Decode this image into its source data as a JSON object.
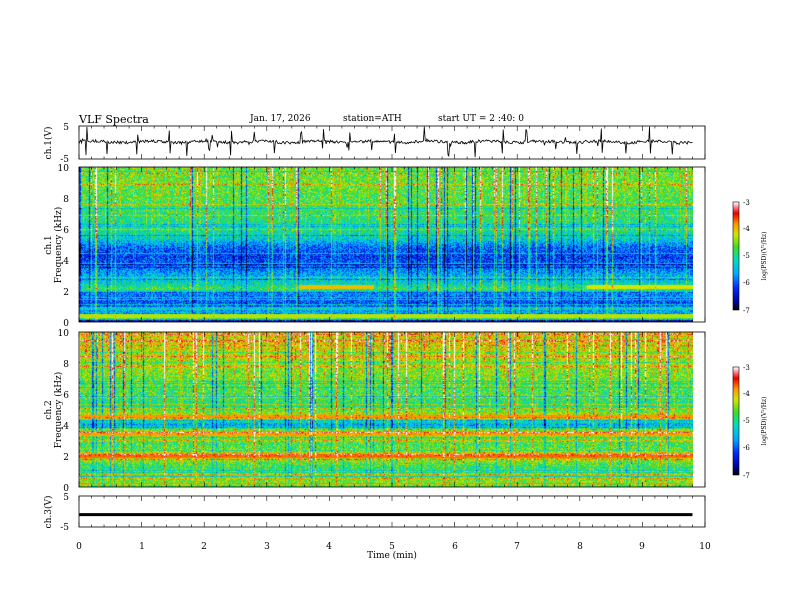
{
  "header": {
    "title": "VLF  Spectra",
    "date": "Jan. 17, 2026",
    "station": "station=ATH",
    "start": "start  UT  =   2 :40: 0"
  },
  "chart_data": [
    {
      "type": "line",
      "panel": "ch1-waveform",
      "ylabel": "ch.1(V)",
      "ylim": [
        -5,
        5
      ],
      "yticks": [
        "5",
        "-5"
      ],
      "xlim": [
        0,
        10
      ],
      "trace_end_min": 9.8,
      "baseline": 0.2,
      "spike_times_min": [
        0.12,
        0.45,
        0.93,
        1.45,
        1.72,
        2.08,
        2.43,
        2.8,
        3.12,
        3.55,
        3.9,
        4.32,
        4.68,
        5.05,
        5.52,
        5.9,
        6.33,
        6.77,
        7.15,
        7.62,
        7.95,
        8.35,
        8.74,
        9.12,
        9.48
      ]
    },
    {
      "type": "heatmap",
      "panel": "ch1-spectrogram",
      "ylabel": "ch.1\nFrequency (kHz)",
      "ylim": [
        0,
        10
      ],
      "yticks": [
        "0",
        "2",
        "4",
        "6",
        "8",
        "10"
      ],
      "xlim": [
        0,
        10
      ],
      "trace_end_min": 9.8,
      "colorbar": {
        "label": "log(PSD)(V²/Hz)",
        "ticks": [
          "-3",
          "-4",
          "-5",
          "-6",
          "-7"
        ],
        "range": [
          -7,
          -3
        ]
      },
      "profile_khz": [
        0,
        0.3,
        0.6,
        0.9,
        1.2,
        1.5,
        1.8,
        2.1,
        2.4,
        3.0,
        3.6,
        4.2,
        4.8,
        5.4,
        6.0,
        7.0,
        8.0,
        9.0,
        10.0
      ],
      "profile_logpsd": [
        -7.0,
        -4.5,
        -5.6,
        -5.9,
        -6.1,
        -6.0,
        -5.8,
        -4.8,
        -5.2,
        -5.6,
        -6.0,
        -6.2,
        -6.0,
        -5.3,
        -5.0,
        -4.9,
        -4.7,
        -4.6,
        -4.6
      ],
      "bands": [
        {
          "khz": 2.25,
          "logpsd": -4.0,
          "from_min": 3.5,
          "to_min": 4.7
        },
        {
          "khz": 2.25,
          "logpsd": -4.2,
          "from_min": 8.1,
          "to_min": 9.8
        },
        {
          "khz": 0.35,
          "logpsd": -4.3,
          "from_min": 0,
          "to_min": 9.8
        }
      ]
    },
    {
      "type": "heatmap",
      "panel": "ch2-spectrogram",
      "ylabel": "ch.2\nFrequency (kHz)",
      "ylim": [
        0,
        10
      ],
      "yticks": [
        "0",
        "2",
        "4",
        "6",
        "8",
        "10"
      ],
      "xlim": [
        0,
        10
      ],
      "trace_end_min": 9.8,
      "colorbar": {
        "label": "log(PSD)(V²/Hz)",
        "ticks": [
          "-3",
          "-4",
          "-5",
          "-6",
          "-7"
        ],
        "range": [
          -7,
          -3
        ]
      },
      "profile_khz": [
        0,
        0.3,
        0.6,
        0.9,
        1.2,
        1.6,
        2.0,
        2.5,
        3.0,
        3.5,
        4.0,
        4.6,
        5.2,
        6.0,
        7.0,
        8.0,
        9.0,
        10.0
      ],
      "profile_logpsd": [
        -4.2,
        -4.4,
        -4.8,
        -4.6,
        -4.9,
        -4.6,
        -3.9,
        -4.7,
        -4.8,
        -4.0,
        -5.7,
        -4.2,
        -5.0,
        -4.8,
        -4.6,
        -4.4,
        -4.2,
        -4.1
      ],
      "bands": [
        {
          "khz": 4.55,
          "logpsd": -3.8,
          "from_min": 0,
          "to_min": 9.8
        },
        {
          "khz": 2.0,
          "logpsd": -3.7,
          "from_min": 0,
          "to_min": 9.8
        },
        {
          "khz": 3.4,
          "logpsd": -3.9,
          "from_min": 0,
          "to_min": 9.8
        }
      ]
    },
    {
      "type": "line",
      "panel": "ch3-waveform",
      "ylabel": "ch.3(V)",
      "ylim": [
        -5,
        5
      ],
      "yticks": [
        "5",
        "-5"
      ],
      "xlim": [
        0,
        10
      ],
      "trace_end_min": 9.8,
      "baseline": -1.0,
      "xlabel": "Time  (min)",
      "xticks": [
        "0",
        "1",
        "2",
        "3",
        "4",
        "5",
        "6",
        "7",
        "8",
        "9",
        "10"
      ]
    }
  ]
}
